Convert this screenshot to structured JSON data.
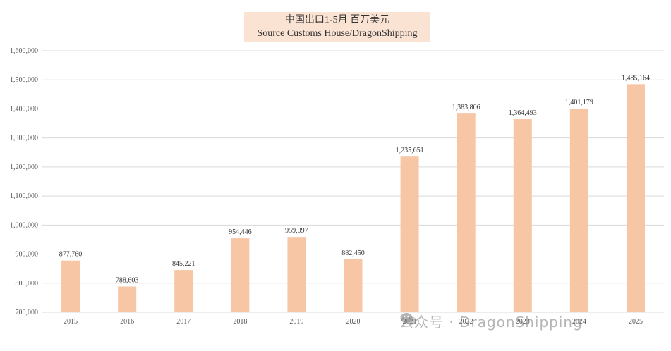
{
  "chart_data": {
    "type": "bar",
    "title": "中国出口1-5月 百万美元",
    "subtitle": "Source Customs House/DragonShipping",
    "categories": [
      "2015",
      "2016",
      "2017",
      "2018",
      "2019",
      "2020",
      "2021",
      "2022",
      "2023",
      "2024",
      "2025"
    ],
    "values": [
      877760,
      788603,
      845221,
      954446,
      959097,
      882450,
      1235651,
      1383806,
      1364493,
      1401179,
      1485164
    ],
    "value_labels": [
      "877,760",
      "788,603",
      "845,221",
      "954,446",
      "959,097",
      "882,450",
      "1,235,651",
      "1,383,806",
      "1,364,493",
      "1,401,179",
      "1,485,164"
    ],
    "y_ticks": [
      700000,
      800000,
      900000,
      1000000,
      1100000,
      1200000,
      1300000,
      1400000,
      1500000,
      1600000
    ],
    "y_tick_labels": [
      "700,000",
      "800,000",
      "900,000",
      "1,000,000",
      "1,100,000",
      "1,200,000",
      "1,300,000",
      "1,400,000",
      "1,500,000",
      "1,600,000"
    ],
    "ylim": [
      700000,
      1600000
    ],
    "xlabel": "",
    "ylabel": "",
    "grid": true,
    "legend": "none",
    "bar_color": "#f7c6a4",
    "title_bg_color": "#fbe3d4"
  },
  "watermark": {
    "text": "公众号 · DragonShipping",
    "icon": "wechat-icon"
  }
}
